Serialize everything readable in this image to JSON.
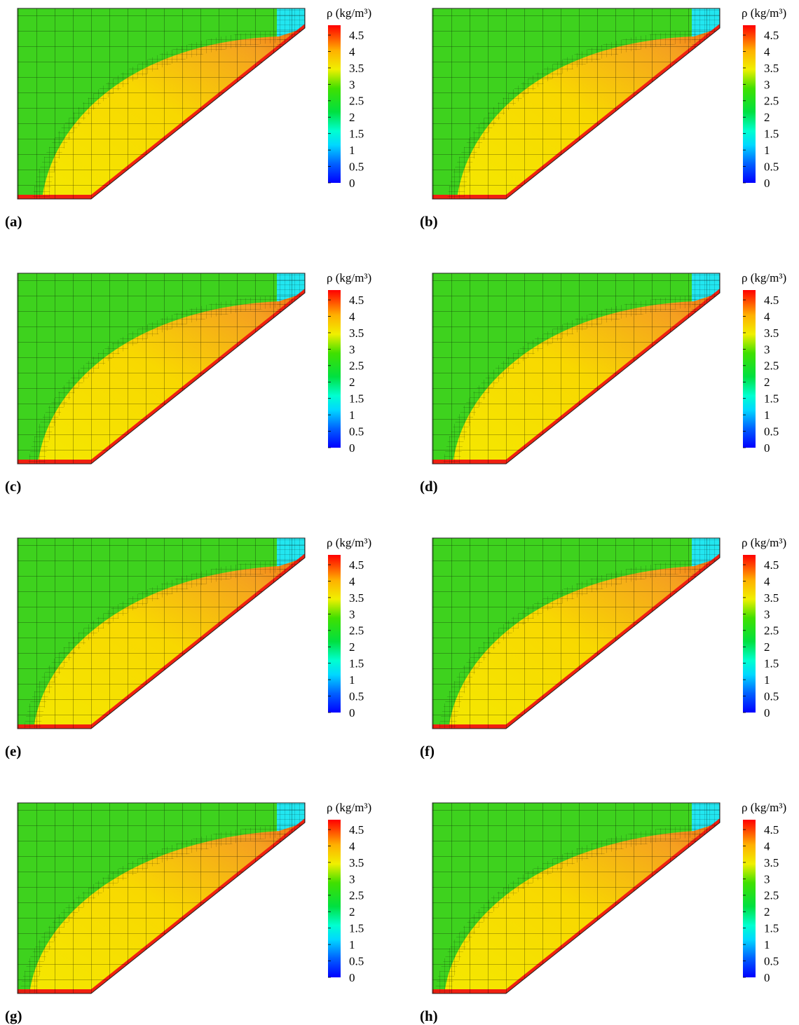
{
  "panels": [
    {
      "label": "(a)"
    },
    {
      "label": "(b)"
    },
    {
      "label": "(c)"
    },
    {
      "label": "(d)"
    },
    {
      "label": "(e)"
    },
    {
      "label": "(f)"
    },
    {
      "label": "(g)"
    },
    {
      "label": "(h)"
    }
  ],
  "colorbar": {
    "title": "ρ (kg/m³)",
    "range": [
      0,
      4.8
    ],
    "ticks": [
      0,
      0.5,
      1,
      1.5,
      2,
      2.5,
      3,
      3.5,
      4,
      4.5
    ]
  }
}
